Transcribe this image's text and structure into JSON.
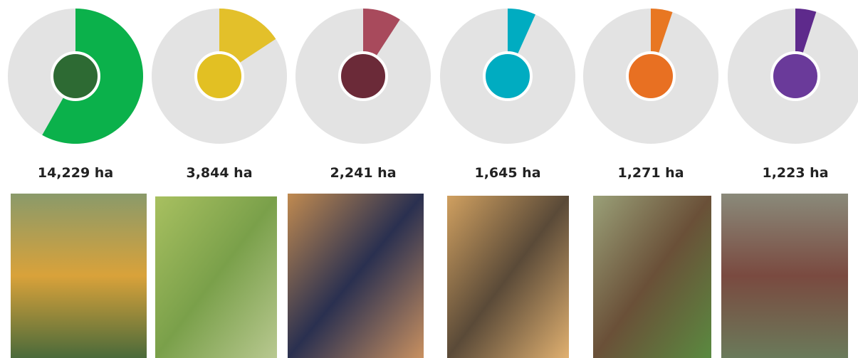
{
  "chart_data": {
    "type": "donut-row",
    "values": [
      14229,
      3844,
      2241,
      1645,
      1271,
      1223
    ],
    "value_labels": [
      "14,229 ha",
      "3,844 ha",
      "2,241 ha",
      "1,645 ha",
      "1,271 ha",
      "1,223 ha"
    ],
    "colors": [
      "#0bb14b",
      "#e3c02a",
      "#a84a5c",
      "#00acc1",
      "#e87722",
      "#5e2a8c"
    ],
    "center_colors": [
      "#2d6a33",
      "#e2c023",
      "#6b2a38",
      "#00acc1",
      "#e87022",
      "#6a3a9a"
    ]
  }
}
